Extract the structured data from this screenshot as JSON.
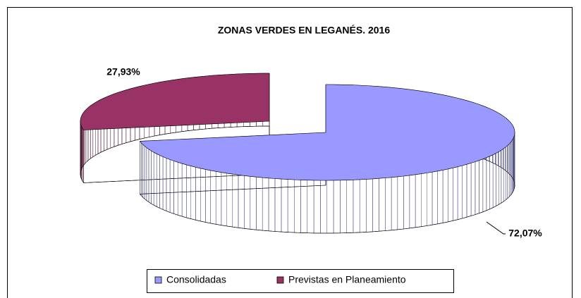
{
  "chart_data": {
    "type": "pie",
    "title": "ZONAS VERDES EN LEGANÉS. 2016",
    "categories": [
      "Consolidadas",
      "Previstas en Planeamiento"
    ],
    "values": [
      72.07,
      27.93
    ],
    "value_labels": [
      "72,07%",
      "27,93%"
    ],
    "colors": [
      "#9999ff",
      "#993366"
    ]
  }
}
